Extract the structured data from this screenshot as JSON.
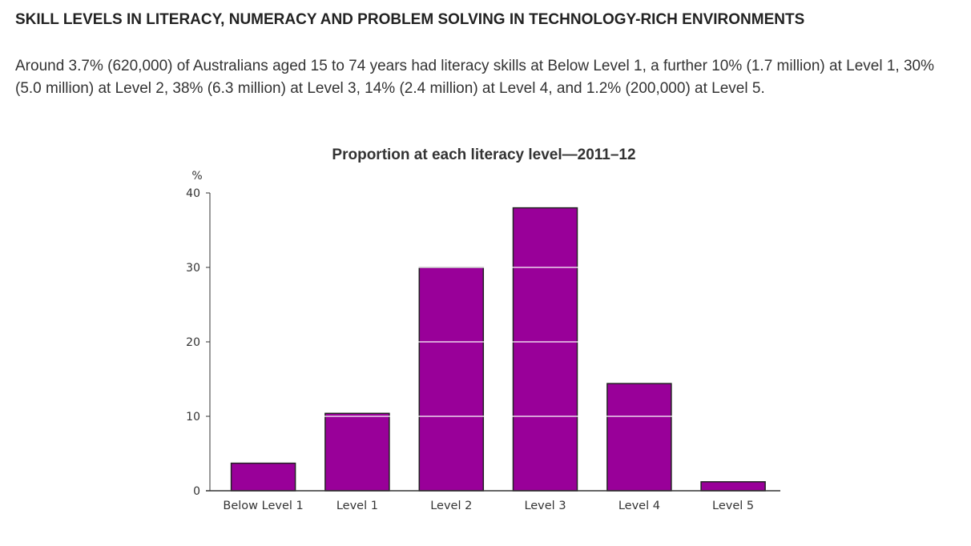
{
  "page": {
    "heading": "SKILL LEVELS IN LITERACY, NUMERACY AND PROBLEM SOLVING IN TECHNOLOGY-RICH ENVIRONMENTS",
    "intro": "Around 3.7% (620,000) of Australians aged 15 to 74 years had literacy skills at Below Level 1, a further 10% (1.7 million) at Level 1, 30% (5.0 million) at Level 2, 38% (6.3 million) at Level 3, 14% (2.4 million) at Level 4, and 1.2% (200,000) at Level 5."
  },
  "chart_data": {
    "type": "bar",
    "title": "Proportion at each literacy level—2011–12",
    "xlabel": "",
    "ylabel": "%",
    "categories": [
      "Below Level 1",
      "Level 1",
      "Level 2",
      "Level 3",
      "Level 4",
      "Level 5"
    ],
    "values": [
      3.7,
      10.4,
      30,
      38,
      14.4,
      1.2
    ],
    "ylim": [
      0,
      40
    ],
    "yticks": [
      0,
      10,
      20,
      30,
      40
    ],
    "grid": true,
    "legend": "none",
    "bar_color": "#990099",
    "bar_edge_color": "#222222",
    "grid_color": "#ffffff"
  }
}
